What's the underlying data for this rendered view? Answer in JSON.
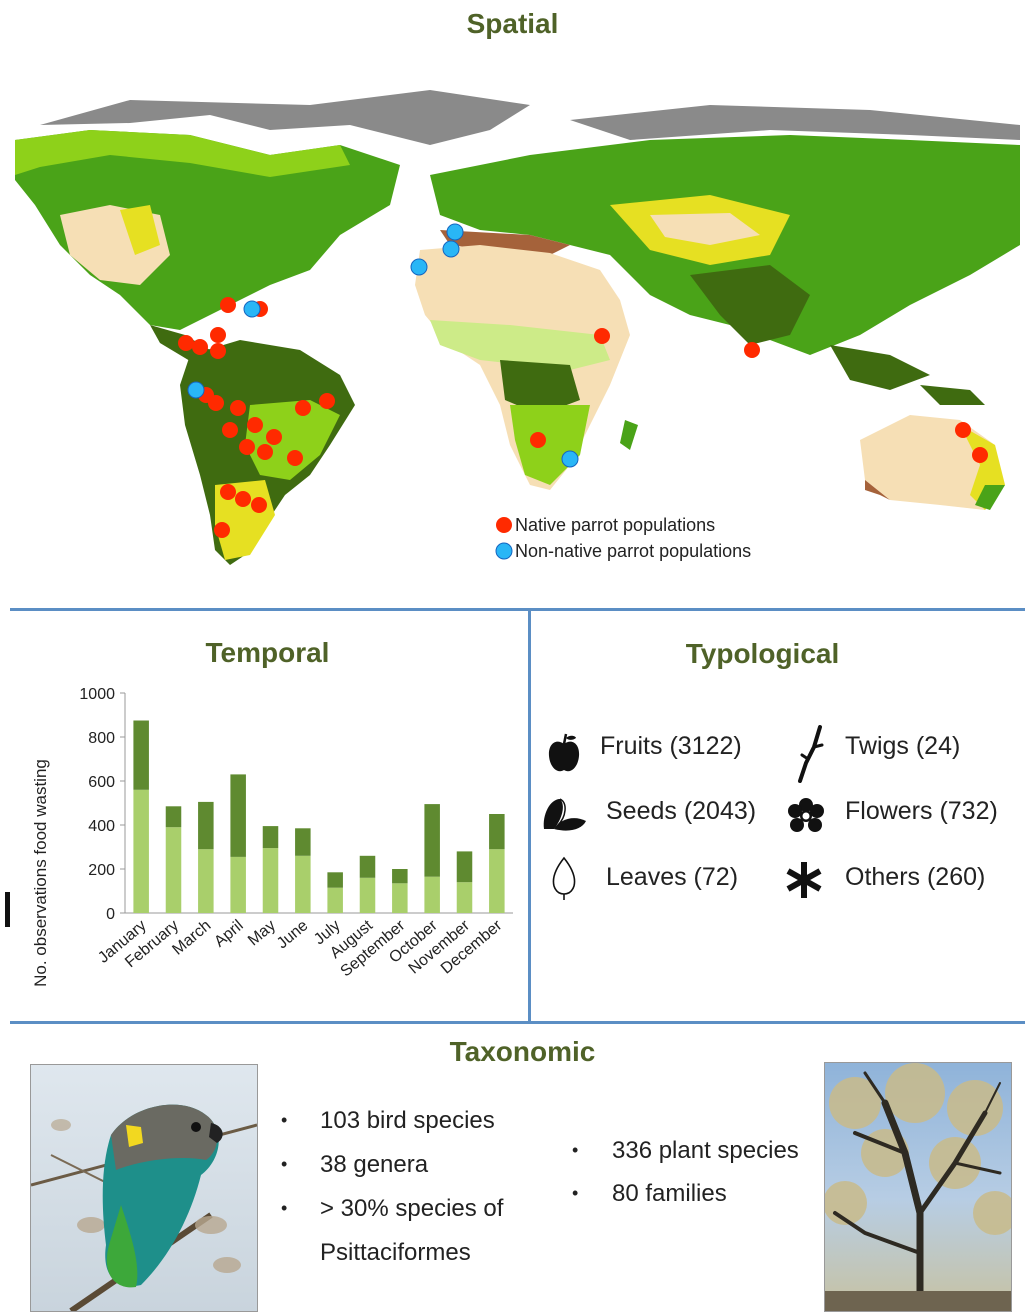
{
  "titles": {
    "spatial": "Spatial",
    "temporal": "Temporal",
    "typological": "Typological",
    "taxonomic": "Taxonomic"
  },
  "map": {
    "legend": {
      "native": "Native parrot populations",
      "non_native": "Non-native parrot populations"
    },
    "colors": {
      "native": "#ff2a00",
      "non_native": "#29b6f6",
      "forest_dark": "#3f6b10",
      "forest": "#4aa318",
      "grassland": "#8ed11a",
      "savanna": "#cdeb88",
      "yellow": "#e6e022",
      "desert": "#f6dfb5",
      "mediterranean": "#a5623a",
      "tundra": "#8a8a8a"
    }
  },
  "chart_data": {
    "type": "bar",
    "stacked": true,
    "categories": [
      "January",
      "February",
      "March",
      "April",
      "May",
      "June",
      "July",
      "August",
      "September",
      "October",
      "November",
      "December"
    ],
    "series": [
      {
        "color": "#a9cf6b",
        "values": [
          560,
          390,
          290,
          255,
          295,
          260,
          115,
          160,
          135,
          165,
          140,
          290
        ]
      },
      {
        "color": "#5f8a30",
        "values": [
          315,
          95,
          215,
          375,
          100,
          125,
          70,
          100,
          65,
          330,
          140,
          160
        ]
      }
    ],
    "ylabel": "No. observations food wasting",
    "ylim": [
      0,
      1000
    ],
    "yticks": [
      0,
      200,
      400,
      600,
      800,
      1000
    ],
    "grid": false
  },
  "typological": {
    "items": [
      {
        "label": "Fruits (3122)",
        "icon": "apple-icon"
      },
      {
        "label": "Twigs (24)",
        "icon": "twig-icon"
      },
      {
        "label": "Seeds (2043)",
        "icon": "seeds-icon"
      },
      {
        "label": "Flowers (732)",
        "icon": "flower-icon"
      },
      {
        "label": "Leaves (72)",
        "icon": "leaf-icon"
      },
      {
        "label": "Others (260)",
        "icon": "asterisk-icon"
      }
    ]
  },
  "taxonomic": {
    "bird_bullets": [
      "103 bird species",
      "38 genera",
      "> 30% species of",
      "Psittaciformes"
    ],
    "plant_bullets": [
      "336 plant species",
      "80 families"
    ]
  }
}
